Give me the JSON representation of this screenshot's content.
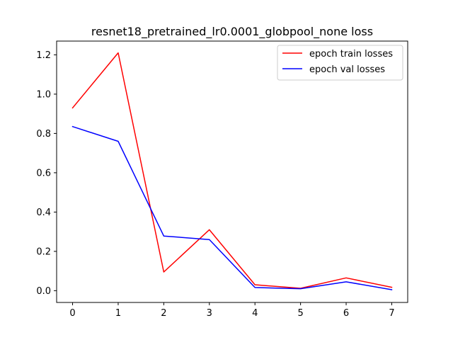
{
  "chart_data": {
    "type": "line",
    "title": "resnet18_pretrained_lr0.0001_globpool_none loss",
    "xlabel": "",
    "ylabel": "",
    "x": [
      0,
      1,
      2,
      3,
      4,
      5,
      6,
      7
    ],
    "xlim": [
      -0.35,
      7.35
    ],
    "ylim": [
      -0.06,
      1.27
    ],
    "xticks": [
      0,
      1,
      2,
      3,
      4,
      5,
      6,
      7
    ],
    "yticks": [
      0.0,
      0.2,
      0.4,
      0.6,
      0.8,
      1.0,
      1.2
    ],
    "ytick_labels": [
      "0.0",
      "0.2",
      "0.4",
      "0.6",
      "0.8",
      "1.0",
      "1.2"
    ],
    "grid": false,
    "legend_position": "top-right",
    "series": [
      {
        "name": "epoch train losses",
        "color": "#ff0000",
        "values": [
          0.93,
          1.21,
          0.095,
          0.31,
          0.03,
          0.012,
          0.065,
          0.017
        ]
      },
      {
        "name": "epoch val losses",
        "color": "#0000ff",
        "values": [
          0.835,
          0.76,
          0.278,
          0.26,
          0.016,
          0.01,
          0.045,
          0.005
        ]
      }
    ]
  }
}
